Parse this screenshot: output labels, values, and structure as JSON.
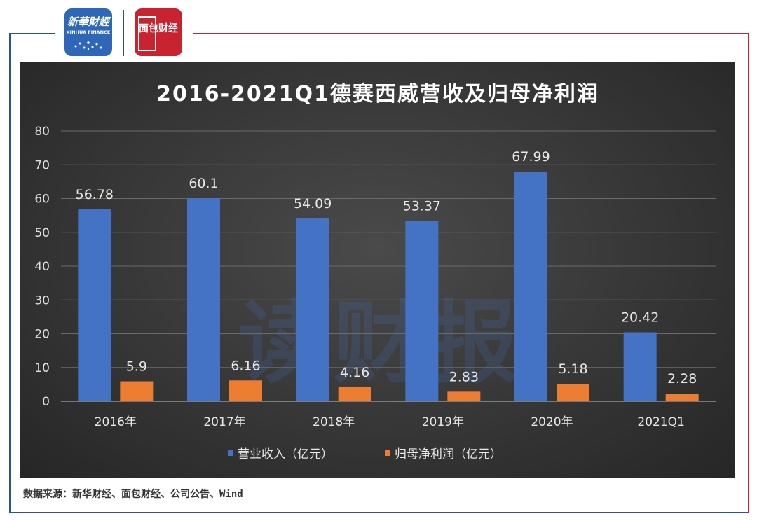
{
  "header": {
    "xinhua_logo_cn": "新華財經",
    "xinhua_logo_en": "XINHUA FINANCE",
    "bread_logo_text": "面包财经"
  },
  "watermark": "读财报",
  "source_note": "数据来源：新华财经、面包财经、公司公告、Wind",
  "colors": {
    "revenue": "#4472c4",
    "net_profit": "#ed7d31",
    "frame_blue": "#2b4fa3",
    "frame_red": "#c8232f"
  },
  "chart_data": {
    "type": "bar",
    "title": "2016-2021Q1德赛西威营收及归母净利润",
    "categories": [
      "2016年",
      "2017年",
      "2018年",
      "2019年",
      "2020年",
      "2021Q1"
    ],
    "series": [
      {
        "name": "营业收入（亿元）",
        "values": [
          56.78,
          60.1,
          54.09,
          53.37,
          67.99,
          20.42
        ],
        "labels": [
          "56.78",
          "60.1",
          "54.09",
          "53.37",
          "67.99",
          "20.42"
        ]
      },
      {
        "name": "归母净利润（亿元）",
        "values": [
          5.9,
          6.16,
          4.16,
          2.83,
          5.18,
          2.28
        ],
        "labels": [
          "5.9",
          "6.16",
          "4.16",
          "2.83",
          "5.18",
          "2.28"
        ]
      }
    ],
    "ylim": [
      0,
      80
    ],
    "yticks": [
      0,
      10,
      20,
      30,
      40,
      50,
      60,
      70,
      80
    ],
    "grid": true,
    "legend": "bottom-center",
    "xlabel": "",
    "ylabel": ""
  }
}
